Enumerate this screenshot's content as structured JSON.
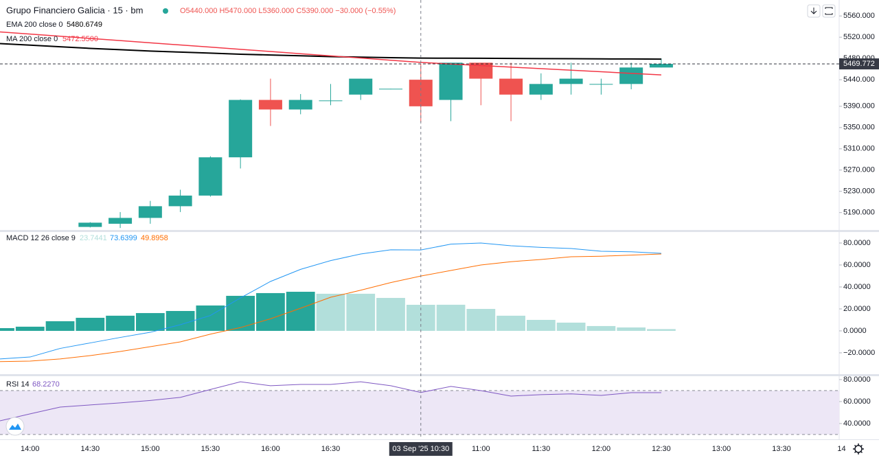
{
  "header": {
    "title": "Grupo Financiero Galicia · 15 · bm",
    "ohlc": "O5440.000 H5470.000 L5360.000 C5390.000 −30.000 (−0.55%)"
  },
  "chart_data": [
    {
      "type": "candlestick",
      "categories": [
        null,
        "14:00",
        null,
        "14:30",
        null,
        "15:00",
        null,
        "15:30",
        null,
        "16:00",
        null,
        "16:30",
        null,
        null,
        "03 Sep '25  10:30",
        null,
        "11:00",
        null,
        "11:30",
        null,
        "12:00",
        null,
        "12:30"
      ],
      "future_categories": [
        "13:00",
        "13:30",
        "14"
      ],
      "open": [
        null,
        null,
        null,
        5163,
        5169,
        5180,
        5202,
        5222,
        5294,
        5402,
        5384,
        5400,
        5412,
        5422,
        5440,
        5402,
        5472,
        5442,
        5412,
        5432,
        5432,
        5432,
        5463
      ],
      "high": [
        null,
        null,
        null,
        5172,
        5191,
        5212,
        5233,
        5296,
        5403,
        5442,
        5413,
        5432,
        5442,
        5423,
        5470,
        5472,
        5472,
        5472,
        5452,
        5472,
        5442,
        5472,
        5480
      ],
      "low": [
        null,
        null,
        null,
        5162,
        5161,
        5169,
        5191,
        5220,
        5273,
        5353,
        5375,
        5392,
        5402,
        5422,
        5360,
        5362,
        5392,
        5362,
        5402,
        5412,
        5412,
        5422,
        5463
      ],
      "close": [
        null,
        null,
        null,
        5171,
        5180,
        5202,
        5222,
        5294,
        5402,
        5384,
        5402,
        5401,
        5442,
        5423,
        5390,
        5472,
        5442,
        5412,
        5432,
        5442,
        5432,
        5463,
        5469.772
      ],
      "up_color": "#26a69a",
      "down_color": "#ef5350",
      "series": [
        {
          "name": "EMA 200 close 0",
          "value_label": "5480.6749",
          "color": "#000000",
          "values": [
            5508,
            5505,
            5502,
            5499,
            5496.5,
            5494,
            5492,
            5490,
            5488,
            5486.5,
            5485,
            5483.5,
            5482.5,
            5481.5,
            5480.6749,
            5480.5,
            5480.3,
            5480.0,
            5479.8,
            5479.5,
            5479.2,
            5479.0,
            5478.8
          ]
        },
        {
          "name": "MA 200 close 0",
          "value_label": "5472.5500",
          "color": "#f23645",
          "values": [
            5530,
            5525.9,
            5521.8,
            5517.7,
            5513.6,
            5509.5,
            5505.4,
            5501.3,
            5497.2,
            5493.1,
            5489,
            5484.9,
            5480.8,
            5476.7,
            5472.55,
            5469.6,
            5466.7,
            5463.8,
            5460.8,
            5457.9,
            5455,
            5452,
            5449
          ]
        }
      ],
      "last_price": {
        "value": 5469.772,
        "label": "5469.772"
      },
      "ylim": [
        5156,
        5590
      ],
      "yticks": [
        {
          "value": 5560,
          "label": "5560.000"
        },
        {
          "value": 5520,
          "label": "5520.000"
        },
        {
          "value": 5480,
          "label": "5480.000"
        },
        {
          "value": 5440,
          "label": "5440.000"
        },
        {
          "value": 5390,
          "label": "5390.000"
        },
        {
          "value": 5350,
          "label": "5350.000"
        },
        {
          "value": 5310,
          "label": "5310.000"
        },
        {
          "value": 5270,
          "label": "5270.000"
        },
        {
          "value": 5230,
          "label": "5230.000"
        },
        {
          "value": 5190,
          "label": "5190.000"
        }
      ]
    },
    {
      "type": "macd",
      "title": "MACD 12 26 close 9",
      "histogram": {
        "value_label": "23.7441",
        "values": [
          2.5,
          3.8,
          8.8,
          11.9,
          13.8,
          16.2,
          18.1,
          23.1,
          31.9,
          34.4,
          35.6,
          33.8,
          33.8,
          30,
          23.7441,
          23.8,
          20,
          13.8,
          10,
          7.5,
          4.4,
          3.1,
          1.6
        ],
        "colors": [
          "#26a69a",
          "#26a69a",
          "#26a69a",
          "#26a69a",
          "#26a69a",
          "#26a69a",
          "#26a69a",
          "#26a69a",
          "#26a69a",
          "#26a69a",
          "#26a69a",
          "#b2dfdb",
          "#b2dfdb",
          "#b2dfdb",
          "#b2dfdb",
          "#b2dfdb",
          "#b2dfdb",
          "#b2dfdb",
          "#b2dfdb",
          "#b2dfdb",
          "#b2dfdb",
          "#b2dfdb",
          "#b2dfdb"
        ],
        "label_color": "#b2dfdb"
      },
      "series": [
        {
          "value_label": "73.6399",
          "color": "#2196f3",
          "values": [
            -25.6,
            -23.8,
            -16,
            -11,
            -6,
            -1.3,
            5.6,
            14,
            30,
            45,
            56,
            64,
            70,
            73.8,
            73.6399,
            79,
            80,
            77.5,
            76,
            75,
            72.5,
            72,
            70.6
          ]
        },
        {
          "value_label": "49.8958",
          "color": "#ff6d00",
          "values": [
            -28,
            -27.5,
            -25.6,
            -22.5,
            -18.8,
            -14.4,
            -10,
            -3,
            3,
            11,
            20.6,
            30.6,
            37,
            44,
            49.8958,
            55,
            60,
            63,
            65,
            67.5,
            68,
            69,
            70
          ]
        }
      ],
      "ylim": [
        -39.4,
        90
      ],
      "yticks": [
        {
          "value": 80,
          "label": "80.0000"
        },
        {
          "value": 60,
          "label": "60.0000"
        },
        {
          "value": 40,
          "label": "40.0000"
        },
        {
          "value": 20,
          "label": "20.0000"
        },
        {
          "value": 0,
          "label": "0.0000"
        },
        {
          "value": -20,
          "label": "−20.0000"
        }
      ]
    },
    {
      "type": "rsi",
      "title": "RSI 14",
      "series": [
        {
          "value_label": "68.2270",
          "color": "#7e57c2",
          "values": [
            42.5,
            48.8,
            55,
            56.9,
            58.8,
            61,
            63.8,
            71,
            78,
            74.4,
            75.6,
            75.6,
            78,
            74.4,
            68.227,
            73.8,
            70,
            65,
            66.3,
            67,
            65.6,
            68.1,
            68.1
          ]
        }
      ],
      "bands": [
        70,
        30
      ],
      "band_color": "#ede7f6",
      "ylim": [
        25.6,
        83.1
      ],
      "yticks": [
        {
          "value": 80,
          "label": "80.0000"
        },
        {
          "value": 60,
          "label": "60.0000"
        },
        {
          "value": 40,
          "label": "40.0000"
        }
      ]
    }
  ]
}
